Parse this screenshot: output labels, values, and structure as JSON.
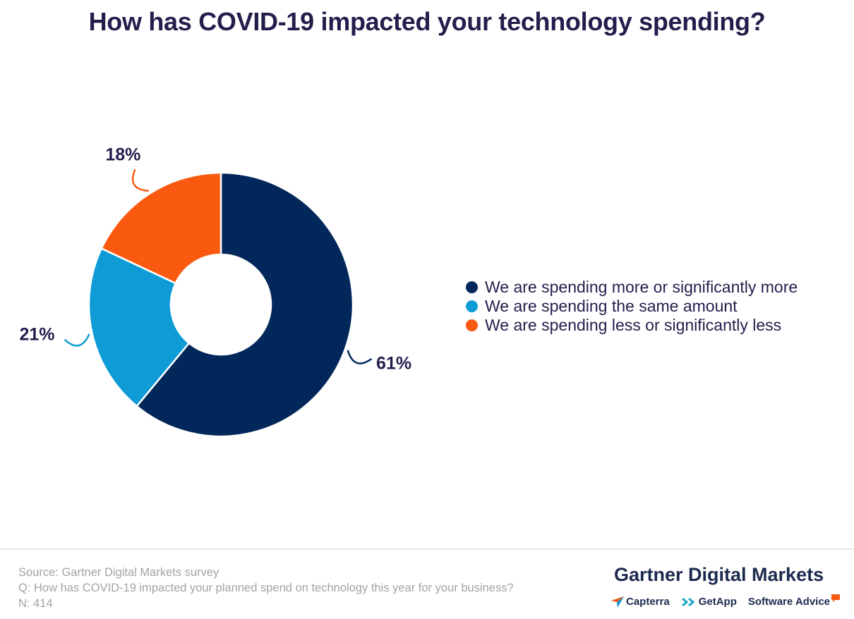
{
  "title": "How has COVID-19 impacted your technology spending?",
  "chart_data": {
    "type": "pie",
    "donut": true,
    "title": "How has COVID-19 impacted your technology spending?",
    "categories": [
      "We are spending more or significantly more",
      "We are spending the same amount",
      "We are spending less or significantly less"
    ],
    "values": [
      61,
      21,
      18
    ],
    "value_labels": [
      "61%",
      "21%",
      "18%"
    ],
    "colors": [
      "#02275a",
      "#0e9bd6",
      "#fa5a10"
    ],
    "legend_position": "right"
  },
  "source": {
    "line1": "Source: Gartner Digital Markets survey",
    "line2": "Q: How has COVID-19 impacted your planned spend on technology this year for your business?",
    "line3": "N: 414"
  },
  "brand": {
    "main": "Gartner Digital Markets",
    "subs": [
      "Capterra",
      "GetApp",
      "Software Advice"
    ],
    "sub_colors": [
      "#1a98d5",
      "#1ea7c8",
      "#fa5a10"
    ]
  }
}
